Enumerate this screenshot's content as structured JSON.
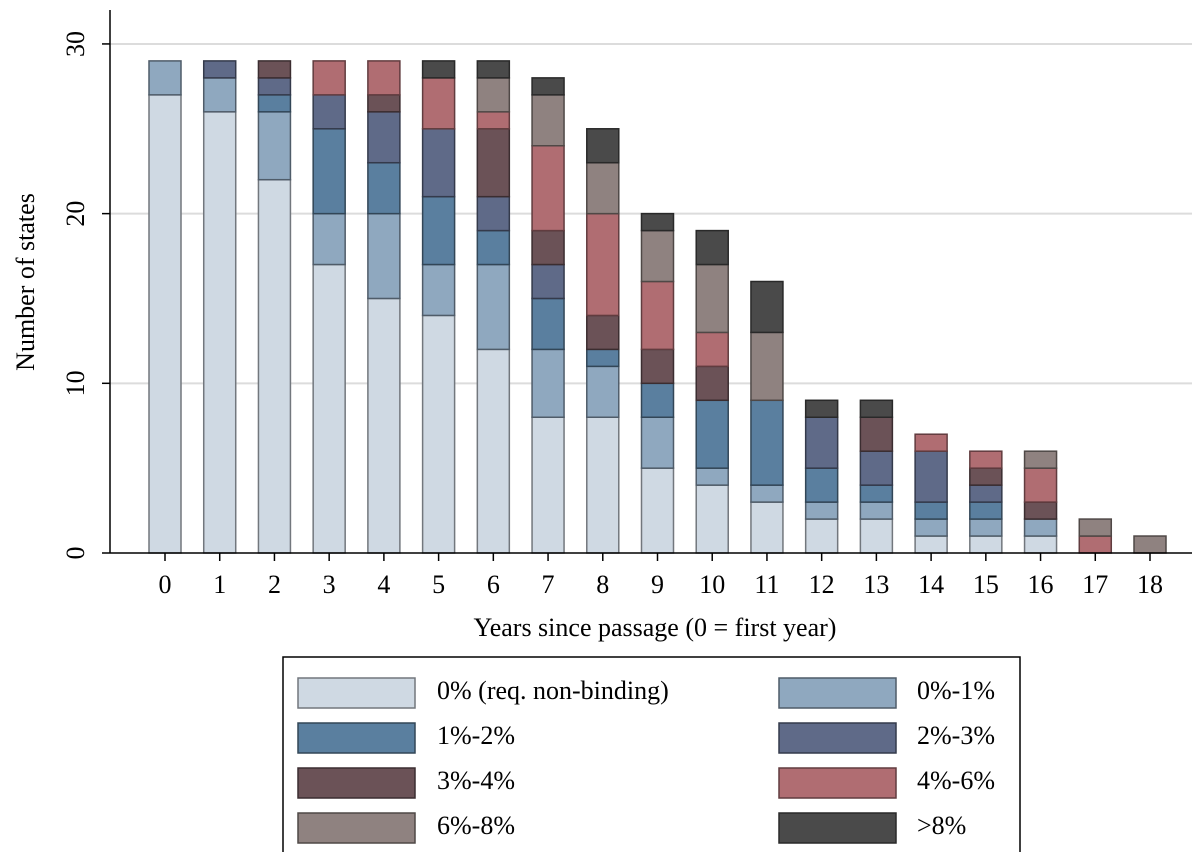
{
  "chart_data": {
    "type": "stacked_bar",
    "x_label": "Years since passage (0 = first year)",
    "y_label": "Number of states",
    "categories": [
      "0",
      "1",
      "2",
      "3",
      "4",
      "5",
      "6",
      "7",
      "8",
      "9",
      "10",
      "11",
      "12",
      "13",
      "14",
      "15",
      "16",
      "17",
      "18"
    ],
    "series": [
      {
        "name": "0% (req. non-binding)",
        "color": "#cfd9e3",
        "values": [
          27,
          26,
          22,
          17,
          15,
          14,
          12,
          8,
          8,
          5,
          4,
          3,
          2,
          2,
          1,
          1,
          1,
          0,
          0
        ]
      },
      {
        "name": "0%-1%",
        "color": "#8fa8bf",
        "values": [
          2,
          2,
          4,
          3,
          5,
          3,
          5,
          4,
          3,
          3,
          1,
          1,
          1,
          1,
          1,
          1,
          1,
          0,
          0
        ]
      },
      {
        "name": "1%-2%",
        "color": "#5a7f9f",
        "values": [
          0,
          0,
          1,
          5,
          3,
          4,
          2,
          3,
          1,
          2,
          4,
          5,
          2,
          1,
          1,
          1,
          0,
          0,
          0
        ]
      },
      {
        "name": "2%-3%",
        "color": "#5f6a88",
        "values": [
          0,
          1,
          1,
          2,
          3,
          4,
          2,
          2,
          0,
          0,
          0,
          0,
          3,
          2,
          3,
          1,
          0,
          0,
          0
        ]
      },
      {
        "name": "3%-4%",
        "color": "#6b5257",
        "values": [
          0,
          0,
          1,
          0,
          1,
          0,
          4,
          2,
          2,
          2,
          2,
          0,
          0,
          2,
          0,
          1,
          1,
          0,
          0
        ]
      },
      {
        "name": "4%-6%",
        "color": "#b06d72",
        "values": [
          0,
          0,
          0,
          2,
          2,
          3,
          1,
          5,
          6,
          4,
          2,
          0,
          0,
          0,
          1,
          1,
          2,
          1,
          0
        ]
      },
      {
        "name": "6%-8%",
        "color": "#8f8280",
        "values": [
          0,
          0,
          0,
          0,
          0,
          0,
          2,
          3,
          3,
          3,
          4,
          4,
          0,
          0,
          0,
          0,
          1,
          1,
          1
        ]
      },
      {
        "name": ">8%",
        "color": "#4a4a4a",
        "values": [
          0,
          0,
          0,
          0,
          0,
          1,
          1,
          1,
          2,
          1,
          2,
          3,
          1,
          1,
          0,
          0,
          0,
          0,
          0
        ]
      }
    ],
    "ylim": [
      0,
      32
    ],
    "yticks": [
      0,
      10,
      20,
      30
    ],
    "grid": true
  }
}
